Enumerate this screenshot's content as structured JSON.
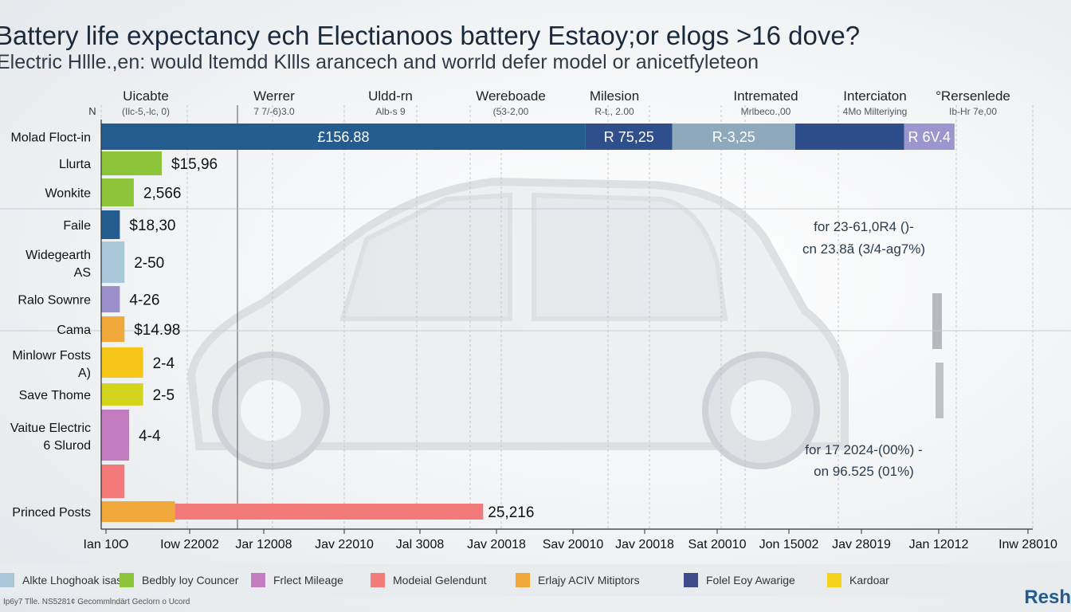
{
  "header": {
    "title": "Battery life expectancy ech Electianoos battery Estaoy;or elogs >16 dove?",
    "subtitle": "Electric Hllle.,en:  would ltemdd Kllls arancech and worrld defer model or anicetfyleteon"
  },
  "chart_data": {
    "type": "bar",
    "orientation": "horizontal",
    "column_headers": [
      {
        "name": "Uicabte",
        "sub": "(Ilc-5,-lc, 0)"
      },
      {
        "name": "Werrer",
        "sub": "7 7/-6)3.0"
      },
      {
        "name": "Uldd-rn",
        "sub": "Alb-s 9"
      },
      {
        "name": "Wereboade",
        "sub": "(53-2,00"
      },
      {
        "name": "Milesion",
        "sub": "R-t., 2.00"
      },
      {
        "name": "Intremated",
        "sub": "Mrlbeco.,00"
      },
      {
        "name": "Interciaton",
        "sub": "4Mo Milteriying"
      },
      {
        "name": "°Rersenlede",
        "sub": "Ib-Hr 7e,00"
      }
    ],
    "x_tick_labels": [
      "Ian 10O",
      "Iow 22002",
      "Jar 12008",
      "Jav 22010",
      "Jal 3008",
      "Jav 20018",
      "Sav 20010",
      "Jav 20018",
      "Sat 20010",
      "Jon 15002",
      "Jav 28019",
      "Jan 12012",
      "Inw 28010"
    ],
    "categories": [
      "Molad Floct-in",
      "Llurta",
      "Wonkite",
      "Faile",
      "Widegearth",
      "Ralo Sownre",
      "Cama",
      "Minlowr Fosts",
      "Save Thome",
      "Vaitue Electric",
      "",
      "Princed Posts"
    ],
    "category_sublabels": [
      "",
      "",
      "",
      "",
      "AS",
      "",
      "",
      "A)",
      "",
      "6 Slurod",
      "",
      ""
    ],
    "values": [
      100,
      6.5,
      3.5,
      2,
      2.5,
      2,
      2.5,
      4.5,
      4.5,
      3,
      2.5,
      41
    ],
    "value_labels": [
      "",
      "$15,96",
      "2,566",
      "$18,30",
      "2-50",
      "4-26",
      "$14.98",
      "2-4",
      "2-5",
      "4-4",
      "",
      "25,216"
    ],
    "stacked_first_row": {
      "segments": [
        {
          "value": 52,
          "label": "£156.88",
          "color": "#245c8f"
        },
        {
          "value": 9.3,
          "label": "R 75,25",
          "color": "#2f4e8c"
        },
        {
          "value": 13.2,
          "label": "R-3,25",
          "color": "#8ea8bc"
        },
        {
          "value": 11.7,
          "label": "",
          "color": "#2d4e8a"
        },
        {
          "value": 5.4,
          "label": "R 6V.4",
          "color": "#9c96cf"
        }
      ]
    },
    "annotations": [
      {
        "line1": "for 23-61,0R4 ()-",
        "line2": "cn 23.8ã (3/4-ag7%)"
      },
      {
        "line1": "for 17 2024-(00%) -",
        "line2": "on 96.525 (01%)"
      }
    ],
    "legend": [
      {
        "label": "Alkte Lhoghoak isas",
        "color": "#a8c7d8"
      },
      {
        "label": "Bedbly loy Councer",
        "color": "#8cc43a"
      },
      {
        "label": "Frlect Mileage",
        "color": "#c27cbf"
      },
      {
        "label": "Modeial Gelendunt",
        "color": "#f27a7a"
      },
      {
        "label": "Erlajy ACIV Mitiptors",
        "color": "#f0a83a"
      },
      {
        "label": "Folel Eoy Awarige",
        "color": "#3d4a8c"
      },
      {
        "label": "Kardoar",
        "color": "#f5d31a"
      }
    ],
    "axis_marker": "N"
  },
  "colors": {
    "bar_colors": [
      "#245c8f",
      "#8cc43a",
      "#8cc43a",
      "#245c8f",
      "#a8c7d8",
      "#9c90cc",
      "#f0a83a",
      "#f5c518",
      "#d4d41e",
      "#c27cbf",
      "#f27a7a",
      "#f0a83a"
    ],
    "last_row_tail": "#f27a7a"
  },
  "footer": {
    "source": "Ip6y7 Tlle. NS5281¢ Gecommlndärt Geclorn o Ucord",
    "brand": "Resh"
  }
}
